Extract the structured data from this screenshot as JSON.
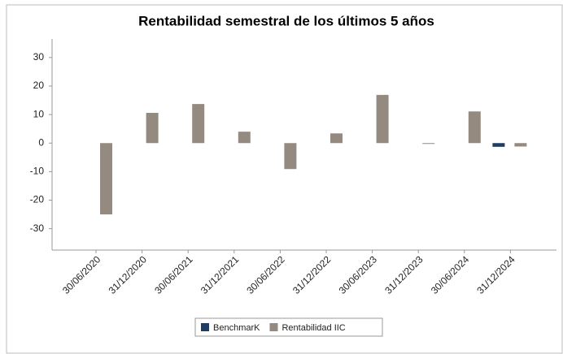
{
  "chart_data": {
    "type": "bar",
    "title": "Rentabilidad semestral de los últimos 5 años",
    "categories": [
      "30/06/2020",
      "31/12/2020",
      "30/06/2021",
      "31/12/2021",
      "30/06/2022",
      "31/12/2022",
      "30/06/2023",
      "31/12/2023",
      "30/06/2024",
      "31/12/2024"
    ],
    "series": [
      {
        "name": "BenchmarK",
        "color": "#1f3c64",
        "values": [
          null,
          null,
          null,
          null,
          null,
          null,
          null,
          null,
          null,
          -1.3
        ]
      },
      {
        "name": "Rentabilidad IIC",
        "color": "#948a80",
        "values": [
          -25,
          10.6,
          13.7,
          4,
          -9.1,
          3.4,
          16.9,
          -0.2,
          11.1,
          -1.2
        ]
      }
    ],
    "ylim": [
      -37.5,
      36.5
    ],
    "yticks": [
      -30,
      -20,
      -10,
      0,
      10,
      20,
      30
    ],
    "grid": false,
    "legend": "bottom"
  }
}
